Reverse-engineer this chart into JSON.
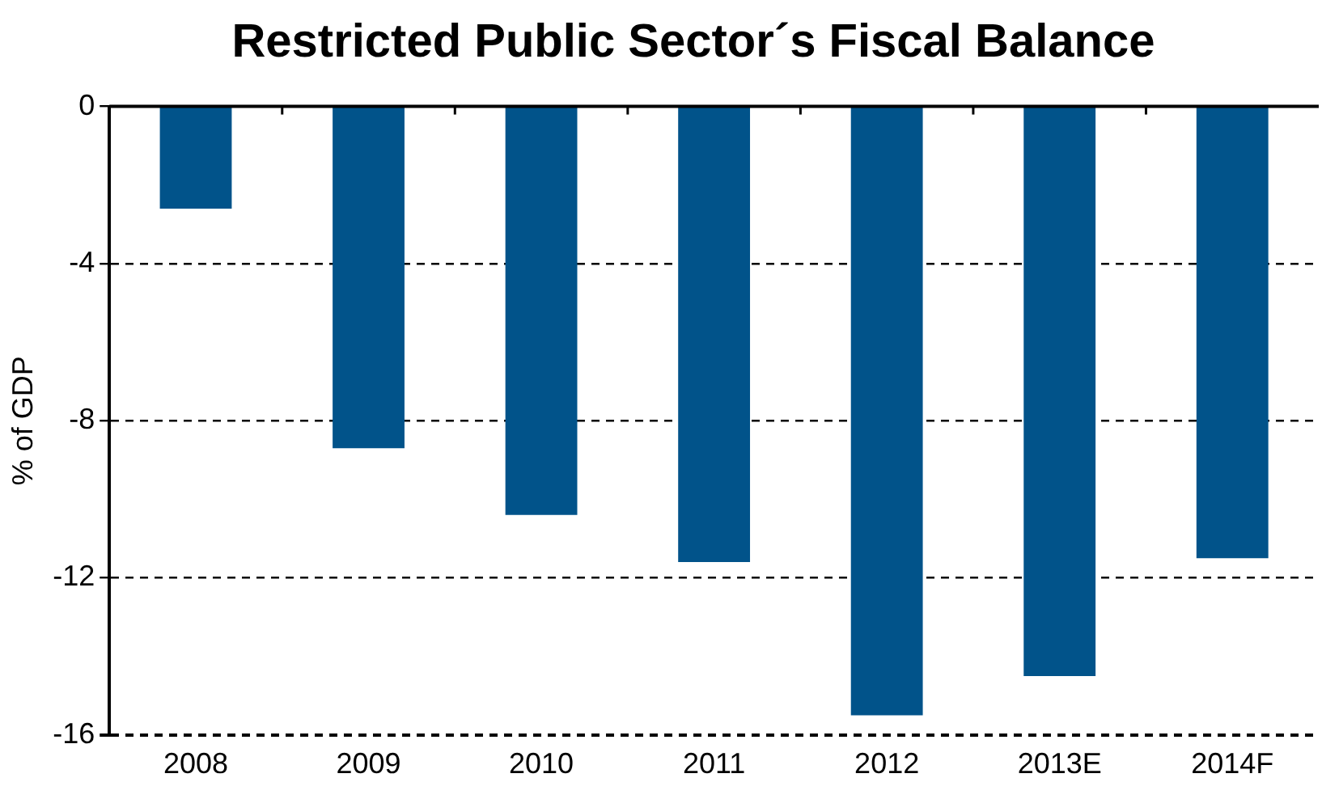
{
  "chart_data": {
    "type": "bar",
    "title": "Restricted Public Sector´s Fiscal Balance",
    "ylabel": "% of GDP",
    "categories": [
      "2008",
      "2009",
      "2010",
      "2011",
      "2012",
      "2013E",
      "2014F"
    ],
    "values": [
      -2.6,
      -8.7,
      -10.4,
      -11.6,
      -15.5,
      -14.5,
      -11.5
    ],
    "color": "#01538a",
    "ylim": [
      -16,
      0
    ],
    "yticks": [
      -16,
      -12,
      -8,
      -4,
      0
    ],
    "grid": "y",
    "legend": false
  }
}
